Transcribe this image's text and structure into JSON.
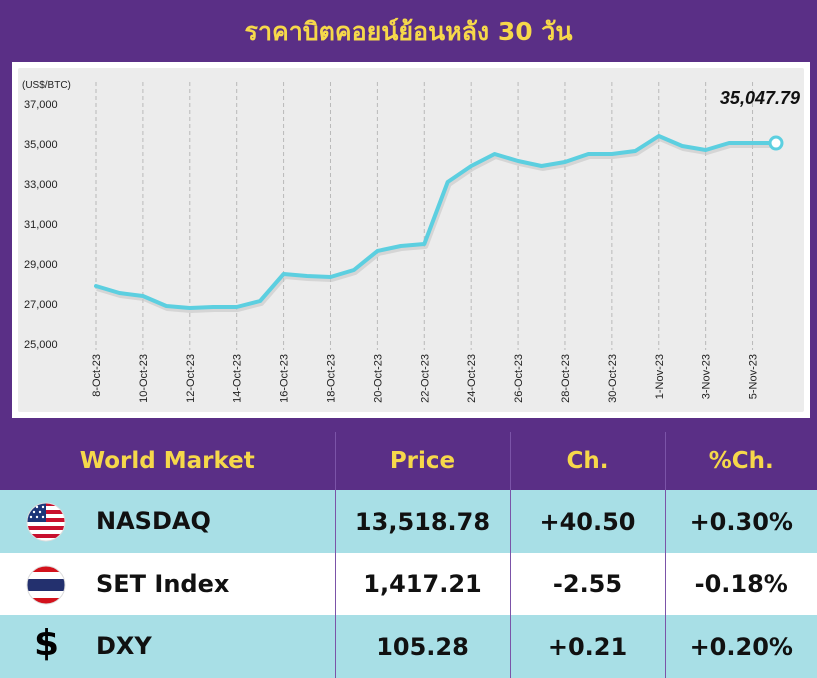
{
  "title": "ราคาบิตคอยน์ย้อนหลัง 30 วัน",
  "chart_data": {
    "type": "line",
    "unit_label": "(US$/BTC)",
    "x": [
      "8-Oct-23",
      "9-Oct-23",
      "10-Oct-23",
      "11-Oct-23",
      "12-Oct-23",
      "13-Oct-23",
      "14-Oct-23",
      "15-Oct-23",
      "16-Oct-23",
      "17-Oct-23",
      "18-Oct-23",
      "19-Oct-23",
      "20-Oct-23",
      "21-Oct-23",
      "22-Oct-23",
      "23-Oct-23",
      "24-Oct-23",
      "25-Oct-23",
      "26-Oct-23",
      "27-Oct-23",
      "28-Oct-23",
      "29-Oct-23",
      "30-Oct-23",
      "31-Oct-23",
      "1-Nov-23",
      "2-Nov-23",
      "3-Nov-23",
      "4-Nov-23",
      "5-Nov-23",
      "6-Nov-23"
    ],
    "tick_labels": [
      "8-Oct-23",
      "10-Oct-23",
      "12-Oct-23",
      "14-Oct-23",
      "16-Oct-23",
      "18-Oct-23",
      "20-Oct-23",
      "22-Oct-23",
      "24-Oct-23",
      "26-Oct-23",
      "28-Oct-23",
      "30-Oct-23",
      "1-Nov-23",
      "3-Nov-23",
      "5-Nov-23"
    ],
    "values": [
      27900,
      27550,
      27400,
      26900,
      26800,
      26850,
      26850,
      27150,
      28500,
      28400,
      28350,
      28700,
      29650,
      29900,
      30000,
      33100,
      33900,
      34500,
      34150,
      33900,
      34100,
      34500,
      34500,
      34650,
      35400,
      34900,
      34700,
      35050,
      35050,
      35047.79
    ],
    "ylim": [
      25000,
      37000
    ],
    "yticks": [
      25000,
      27000,
      29000,
      31000,
      33000,
      35000,
      37000
    ],
    "ytick_labels": [
      "25,000",
      "27,000",
      "29,000",
      "31,000",
      "33,000",
      "35,000",
      "37,000"
    ],
    "last_value_label": "35,047.79",
    "line_color": "#5ccfe0",
    "grid": "vertical dashed"
  },
  "table": {
    "headers": [
      "World Market",
      "Price",
      "Ch.",
      "%Ch."
    ],
    "rows": [
      {
        "flag": "us-flag-icon",
        "name": "NASDAQ",
        "price": "13,518.78",
        "ch": "+40.50",
        "pct": "+0.30%"
      },
      {
        "flag": "thai-flag-icon",
        "name": "SET Index",
        "price": "1,417.21",
        "ch": "-2.55",
        "pct": "-0.18%"
      },
      {
        "flag": "dollar-icon",
        "symbol": "$",
        "name": "DXY",
        "price": "105.28",
        "ch": "+0.21",
        "pct": "+0.20%"
      }
    ]
  },
  "colors": {
    "purple": "#5a2f86",
    "yellow": "#f6d84a",
    "cyan_row": "#a8dfe6"
  }
}
